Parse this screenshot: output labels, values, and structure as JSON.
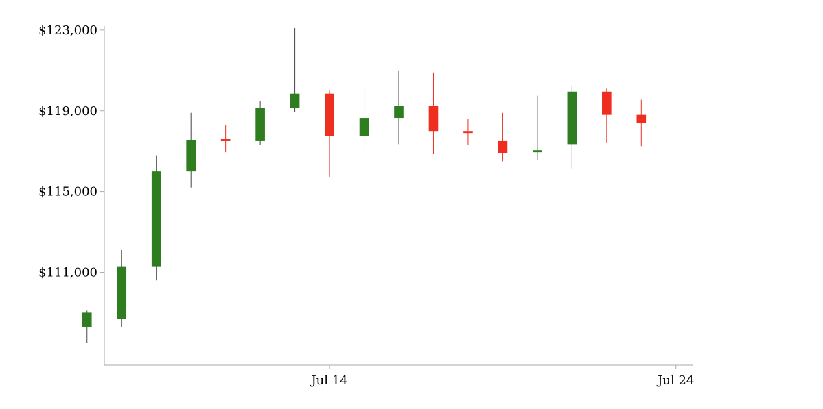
{
  "chart_data": {
    "type": "candlestick",
    "title": "",
    "xlabel": "",
    "ylabel": "",
    "x_tick_labels": [
      "Jul 14",
      "Jul 24"
    ],
    "x_ticks": [
      "2025-07-14",
      "2025-07-24"
    ],
    "y_ticks": [
      111000,
      115000,
      119000,
      123000
    ],
    "y_tick_labels": [
      "$111,000",
      "$115,000",
      "$119,000",
      "$123,000"
    ],
    "ylim": [
      106400,
      123200
    ],
    "xlim": [
      "2025-07-07T12:00:00",
      "2025-07-24T12:00:00"
    ],
    "grid": false,
    "colors": {
      "up": "#2e7d1f",
      "down": "#ee2f1f",
      "up_wick": "#444444",
      "down_wick": "#ee2f1f",
      "axis": "#aaaaaa",
      "text": "#000000"
    },
    "candles": [
      {
        "date": "2025-07-07",
        "open": 108300,
        "high": 109100,
        "low": 107500,
        "close": 109000
      },
      {
        "date": "2025-07-08",
        "open": 108700,
        "high": 112100,
        "low": 108300,
        "close": 111300
      },
      {
        "date": "2025-07-09",
        "open": 111300,
        "high": 116800,
        "low": 110600,
        "close": 116000
      },
      {
        "date": "2025-07-10",
        "open": 116000,
        "high": 118900,
        "low": 115200,
        "close": 117550
      },
      {
        "date": "2025-07-11",
        "open": 117600,
        "high": 118300,
        "low": 116950,
        "close": 117500
      },
      {
        "date": "2025-07-12",
        "open": 117500,
        "high": 119500,
        "low": 117300,
        "close": 119150
      },
      {
        "date": "2025-07-13",
        "open": 119150,
        "high": 123100,
        "low": 118950,
        "close": 119850
      },
      {
        "date": "2025-07-14",
        "open": 119850,
        "high": 120000,
        "low": 115700,
        "close": 117750
      },
      {
        "date": "2025-07-15",
        "open": 117750,
        "high": 120100,
        "low": 117050,
        "close": 118650
      },
      {
        "date": "2025-07-16",
        "open": 118650,
        "high": 121000,
        "low": 117350,
        "close": 119250
      },
      {
        "date": "2025-07-17",
        "open": 119250,
        "high": 120900,
        "low": 116850,
        "close": 118000
      },
      {
        "date": "2025-07-18",
        "open": 118000,
        "high": 118600,
        "low": 117300,
        "close": 117900
      },
      {
        "date": "2025-07-19",
        "open": 117500,
        "high": 118900,
        "low": 116500,
        "close": 116900
      },
      {
        "date": "2025-07-20",
        "open": 116950,
        "high": 119750,
        "low": 116550,
        "close": 117050
      },
      {
        "date": "2025-07-21",
        "open": 117350,
        "high": 120250,
        "low": 116150,
        "close": 119950
      },
      {
        "date": "2025-07-22",
        "open": 119950,
        "high": 120100,
        "low": 117400,
        "close": 118800
      },
      {
        "date": "2025-07-23",
        "open": 118800,
        "high": 119550,
        "low": 117250,
        "close": 118400
      }
    ]
  }
}
